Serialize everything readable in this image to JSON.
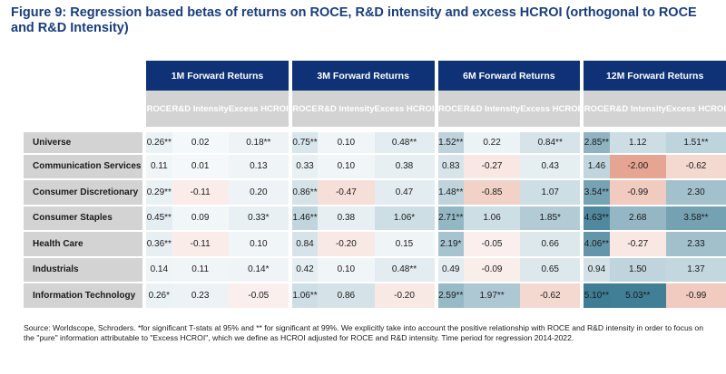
{
  "title": "Figure 9: Regression based betas of returns on ROCE, R&D intensity and excess HCROI (orthogonal to ROCE and R&D Intensity)",
  "source_note": "Source: Worldscope, Schroders. *for significant T-stats at 95% and ** for significant at 99%. We explicitly take into account the positive relationship with ROCE and R&D intensity in order to focus on the \"pure\" information attributable to \"Excess HCROI\", which we define as HCROI adjusted for ROCE and R&D intensity. Time period for regression 2014-2022.",
  "colors": {
    "header_blue": "#0e3275",
    "header_grey": "#d3d3d3",
    "title_blue": "#1a3e7a",
    "positive_base": "#eaf2f5",
    "positive_strong": "#3f7d95",
    "negative_strong": "#e6a592"
  },
  "chart_data": {
    "type": "table",
    "title": "Figure 9: Regression based betas of returns on ROCE, R&D intensity and excess HCROI (orthogonal to ROCE and R&D Intensity)",
    "column_groups": [
      {
        "label": "1M Forward Returns",
        "columns": [
          "ROCE",
          "R&D Intensity",
          "Excess HCROI"
        ]
      },
      {
        "label": "3M Forward Returns",
        "columns": [
          "ROCE",
          "R&D Intensity",
          "Excess HCROI"
        ]
      },
      {
        "label": "6M Forward Returns",
        "columns": [
          "ROCE",
          "R&D Intensity",
          "Excess HCROI"
        ]
      },
      {
        "label": "12M Forward Returns",
        "columns": [
          "ROCE",
          "R&D Intensity",
          "Excess HCROI"
        ]
      }
    ],
    "rows": [
      {
        "label": "Universe",
        "cells": [
          {
            "v": 0.26,
            "t": "0.26**"
          },
          {
            "v": 0.02,
            "t": "0.02"
          },
          {
            "v": 0.18,
            "t": "0.18**"
          },
          {
            "v": 0.75,
            "t": "0.75**"
          },
          {
            "v": 0.1,
            "t": "0.10"
          },
          {
            "v": 0.48,
            "t": "0.48**"
          },
          {
            "v": 1.52,
            "t": "1.52**"
          },
          {
            "v": 0.22,
            "t": "0.22"
          },
          {
            "v": 0.84,
            "t": "0.84**"
          },
          {
            "v": 2.85,
            "t": "2.85**"
          },
          {
            "v": 1.12,
            "t": "1.12"
          },
          {
            "v": 1.51,
            "t": "1.51**"
          }
        ]
      },
      {
        "label": "Communication Services",
        "cells": [
          {
            "v": 0.11,
            "t": "0.11"
          },
          {
            "v": 0.01,
            "t": "0.01"
          },
          {
            "v": 0.13,
            "t": "0.13"
          },
          {
            "v": 0.33,
            "t": "0.33"
          },
          {
            "v": 0.1,
            "t": "0.10"
          },
          {
            "v": 0.38,
            "t": "0.38"
          },
          {
            "v": 0.83,
            "t": "0.83"
          },
          {
            "v": -0.27,
            "t": "-0.27"
          },
          {
            "v": 0.43,
            "t": "0.43"
          },
          {
            "v": 1.46,
            "t": "1.46"
          },
          {
            "v": -2.0,
            "t": "-2.00"
          },
          {
            "v": -0.62,
            "t": "-0.62"
          }
        ]
      },
      {
        "label": "Consumer Discretionary",
        "cells": [
          {
            "v": 0.29,
            "t": "0.29**"
          },
          {
            "v": -0.11,
            "t": "-0.11"
          },
          {
            "v": 0.2,
            "t": "0.20"
          },
          {
            "v": 0.86,
            "t": "0.86**"
          },
          {
            "v": -0.47,
            "t": "-0.47"
          },
          {
            "v": 0.47,
            "t": "0.47"
          },
          {
            "v": 1.48,
            "t": "1.48**"
          },
          {
            "v": -0.85,
            "t": "-0.85"
          },
          {
            "v": 1.07,
            "t": "1.07"
          },
          {
            "v": 3.54,
            "t": "3.54**"
          },
          {
            "v": -0.99,
            "t": "-0.99"
          },
          {
            "v": 2.3,
            "t": "2.30"
          }
        ]
      },
      {
        "label": "Consumer Staples",
        "cells": [
          {
            "v": 0.45,
            "t": "0.45**"
          },
          {
            "v": 0.09,
            "t": "0.09"
          },
          {
            "v": 0.33,
            "t": "0.33*"
          },
          {
            "v": 1.46,
            "t": "1.46**"
          },
          {
            "v": 0.38,
            "t": "0.38"
          },
          {
            "v": 1.06,
            "t": "1.06*"
          },
          {
            "v": 2.71,
            "t": "2.71**"
          },
          {
            "v": 1.06,
            "t": "1.06"
          },
          {
            "v": 1.85,
            "t": "1.85*"
          },
          {
            "v": 4.63,
            "t": "4.63**"
          },
          {
            "v": 2.68,
            "t": "2.68"
          },
          {
            "v": 3.58,
            "t": "3.58**"
          }
        ]
      },
      {
        "label": "Health Care",
        "cells": [
          {
            "v": 0.36,
            "t": "0.36**"
          },
          {
            "v": -0.11,
            "t": "-0.11"
          },
          {
            "v": 0.1,
            "t": "0.10"
          },
          {
            "v": 0.84,
            "t": "0.84"
          },
          {
            "v": -0.2,
            "t": "-0.20"
          },
          {
            "v": 0.15,
            "t": "0.15"
          },
          {
            "v": 2.19,
            "t": "2.19*"
          },
          {
            "v": -0.05,
            "t": "-0.05"
          },
          {
            "v": 0.66,
            "t": "0.66"
          },
          {
            "v": 4.06,
            "t": "4.06**"
          },
          {
            "v": -0.27,
            "t": "-0.27"
          },
          {
            "v": 2.33,
            "t": "2.33"
          }
        ]
      },
      {
        "label": "Industrials",
        "cells": [
          {
            "v": 0.14,
            "t": "0.14"
          },
          {
            "v": 0.11,
            "t": "0.11"
          },
          {
            "v": 0.14,
            "t": "0.14*"
          },
          {
            "v": 0.42,
            "t": "0.42"
          },
          {
            "v": 0.1,
            "t": "0.10"
          },
          {
            "v": 0.48,
            "t": "0.48**"
          },
          {
            "v": 0.49,
            "t": "0.49"
          },
          {
            "v": -0.09,
            "t": "-0.09"
          },
          {
            "v": 0.65,
            "t": "0.65"
          },
          {
            "v": 0.94,
            "t": "0.94"
          },
          {
            "v": 1.5,
            "t": "1.50"
          },
          {
            "v": 1.37,
            "t": "1.37"
          }
        ]
      },
      {
        "label": "Information Technology",
        "cells": [
          {
            "v": 0.26,
            "t": "0.26*"
          },
          {
            "v": 0.23,
            "t": "0.23"
          },
          {
            "v": -0.05,
            "t": "-0.05"
          },
          {
            "v": 1.06,
            "t": "1.06**"
          },
          {
            "v": 0.86,
            "t": "0.86"
          },
          {
            "v": -0.2,
            "t": "-0.20"
          },
          {
            "v": 2.59,
            "t": "2.59**"
          },
          {
            "v": 1.97,
            "t": "1.97**"
          },
          {
            "v": -0.62,
            "t": "-0.62"
          },
          {
            "v": 5.1,
            "t": "5.10**"
          },
          {
            "v": 5.03,
            "t": "5.03**"
          },
          {
            "v": -0.99,
            "t": "-0.99"
          }
        ]
      }
    ]
  }
}
